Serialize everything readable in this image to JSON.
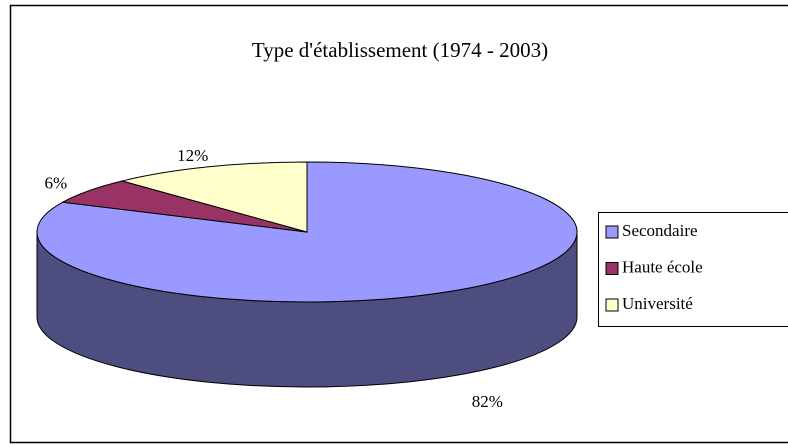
{
  "chart_data": {
    "type": "pie3d",
    "title": "Type d'établissement (1974 - 2003)",
    "categories": [
      "Secondaire",
      "Haute école",
      "Université"
    ],
    "values": [
      82,
      6,
      12
    ],
    "value_labels": [
      "82%",
      "6%",
      "12%"
    ],
    "colors": [
      "#9999ff",
      "#993366",
      "#ffffcc"
    ],
    "legend": "right"
  }
}
